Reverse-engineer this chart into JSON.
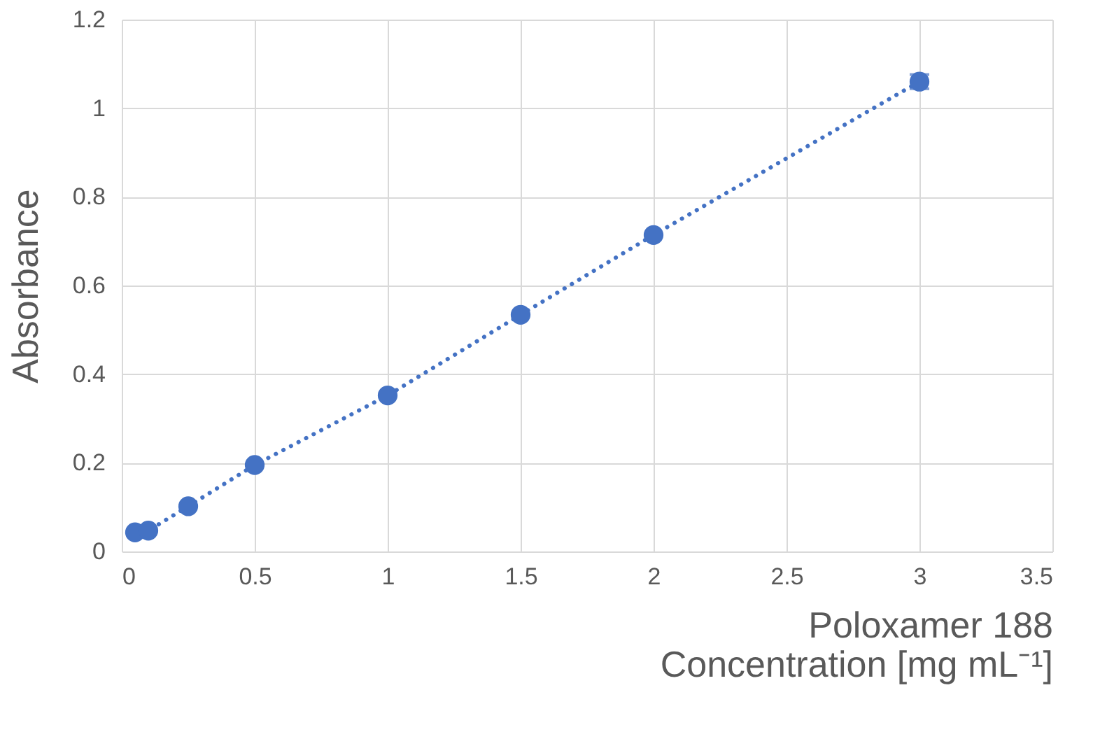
{
  "chart_data": {
    "type": "line",
    "xlabel": "Poloxamer 188\nConcentration [mg mL⁻¹]",
    "ylabel": "Absorbance",
    "x": [
      0.05,
      0.1,
      0.25,
      0.5,
      1,
      1.5,
      2,
      3
    ],
    "series": [
      {
        "color": "#4472c4",
        "values": [
          0.043,
          0.047,
          0.102,
          0.195,
          0.352,
          0.534,
          0.714,
          1.06
        ],
        "errors": [
          null,
          null,
          null,
          null,
          null,
          null,
          null,
          0.016
        ]
      }
    ],
    "xlim": [
      0,
      3.5
    ],
    "xticks": [
      0,
      0.5,
      1,
      1.5,
      2,
      2.5,
      3,
      3.5
    ],
    "ylim": [
      0,
      1.2
    ],
    "yticks": [
      0,
      0.2,
      0.4,
      0.6,
      0.8,
      1,
      1.2
    ],
    "grid": true,
    "marker": "circle",
    "line_style": "dotted"
  }
}
